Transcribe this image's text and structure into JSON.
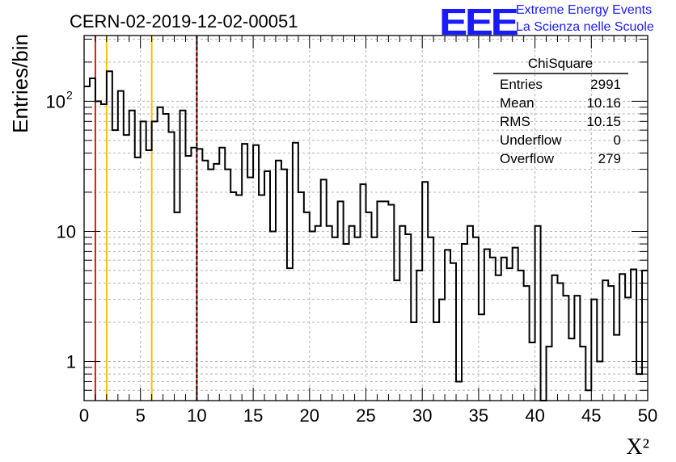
{
  "header": {
    "run_title": "CERN-02-2019-12-02-00051",
    "logo_letters": "EEE",
    "logo_line1": "Extreme Energy Events",
    "logo_line2": "La Scienza nelle Scuole"
  },
  "stats": {
    "title": "ChiSquare",
    "rows": [
      {
        "label": "Entries",
        "value": "2991"
      },
      {
        "label": "Mean",
        "value": "10.16"
      },
      {
        "label": "RMS",
        "value": "10.15"
      },
      {
        "label": "Underflow",
        "value": "0"
      },
      {
        "label": "Overflow",
        "value": "279"
      }
    ]
  },
  "chart_data": {
    "type": "histogram",
    "xlabel": "X²",
    "ylabel": "Entries/bin",
    "xlim": [
      0,
      50
    ],
    "ylim": [
      0.5,
      320
    ],
    "yscale": "log",
    "grid": true,
    "x_ticks": [
      0,
      5,
      10,
      15,
      20,
      25,
      30,
      35,
      40,
      45,
      50
    ],
    "y_tick_labels": [
      {
        "value": 1,
        "label": "1"
      },
      {
        "value": 10,
        "label": "10"
      },
      {
        "value": 100,
        "label": "10",
        "exponent": "2"
      }
    ],
    "bin_width": 0.5,
    "bin_start": 0,
    "values": [
      130,
      150,
      100,
      95,
      170,
      60,
      120,
      55,
      85,
      37,
      70,
      42,
      70,
      90,
      80,
      58,
      14,
      85,
      38,
      44,
      43,
      35,
      30,
      33,
      44,
      30,
      20,
      19,
      47,
      26,
      46,
      19,
      29,
      10,
      35,
      30,
      5.2,
      48,
      20,
      14,
      10,
      11,
      25,
      11,
      9,
      17,
      8,
      11,
      9,
      23,
      14,
      9,
      17,
      17,
      16,
      4.2,
      11,
      9.5,
      2,
      5,
      24,
      9,
      2,
      3,
      7.2,
      5.7,
      0.7,
      8,
      11,
      9,
      2.3,
      7.3,
      6.3,
      4.6,
      6.3,
      5.2,
      7.5,
      5,
      3.8,
      1.4,
      11,
      0.4,
      1.3,
      4.6,
      4,
      3.2,
      1.5,
      3.2,
      1.3,
      0.6,
      3,
      1,
      4.2,
      3.8,
      1.6,
      4.7,
      3.1,
      5.1,
      0.8,
      5
    ]
  },
  "markers": [
    {
      "x": 1,
      "color": "#d21f1f",
      "style": "solid"
    },
    {
      "x": 2,
      "color": "#f5c400",
      "style": "solid"
    },
    {
      "x": 6,
      "color": "#f5c400",
      "style": "solid"
    },
    {
      "x": 10,
      "color": "#d21f1f",
      "style": "solid"
    },
    {
      "x": 10,
      "color": "#000000",
      "style": "dashed"
    }
  ],
  "colors": {
    "logo": "#1a1aff",
    "grid": "#b4b4b4",
    "line": "#000000"
  }
}
